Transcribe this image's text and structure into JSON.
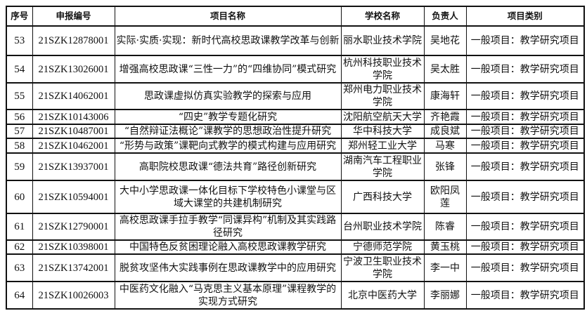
{
  "table": {
    "headers": [
      "序号",
      "申报编号",
      "项目名称",
      "学校名称",
      "负责人",
      "项目类别"
    ],
    "rows": [
      {
        "no": "53",
        "code": "21SZK12878001",
        "project": "实际·实质·实现：新时代高校思政课教学改革与创新",
        "school": "丽水职业技术学院",
        "leader": "吴地花",
        "category": "一般项目：教学研究项目"
      },
      {
        "no": "54",
        "code": "21SZK13026001",
        "project": "增强高校思政课“三性一力”的“四维协同”模式研究",
        "school": "杭州科技职业技术学院",
        "leader": "吴太胜",
        "category": "一般项目：教学研究项目"
      },
      {
        "no": "55",
        "code": "21SZK14062001",
        "project": "思政课虚拟仿真实验教学的探索与应用",
        "school": "郑州电力职业技术学院",
        "leader": "康海轩",
        "category": "一般项目：教学研究项目"
      },
      {
        "no": "56",
        "code": "21SZK10143006",
        "project": "“四史”教学专题化研究",
        "school": "沈阳航空航天大学",
        "leader": "齐艳霞",
        "category": "一般项目：教学研究项目"
      },
      {
        "no": "57",
        "code": "21SZK10487001",
        "project": "“自然辩证法概论”课教学的思想政治性提升研究",
        "school": "华中科技大学",
        "leader": "成良斌",
        "category": "一般项目：教学研究项目"
      },
      {
        "no": "58",
        "code": "21SZK10462001",
        "project": "“形势与政策”课靶向式教学的模式构建与应用研究",
        "school": "郑州轻工业大学",
        "leader": "马寒",
        "category": "一般项目：教学研究项目"
      },
      {
        "no": "59",
        "code": "21SZK13937001",
        "project": "高职院校思政课“德法共育”路径创新研究",
        "school": "湖南汽车工程职业学院",
        "leader": "张锋",
        "category": "一般项目：教学研究项目"
      },
      {
        "no": "60",
        "code": "21SZK10594001",
        "project": "大中小学思政课一体化目标下学校特色小课堂与区域大课堂的共建机制研究",
        "school": "广西科技大学",
        "leader": "欧阳凤莲",
        "category": "一般项目：教学研究项目"
      },
      {
        "no": "61",
        "code": "21SZK12790001",
        "project": "高校思政课手拉手教学“同课异构”机制及其实践路径研究",
        "school": "台州职业技术学院",
        "leader": "陈睿",
        "category": "一般项目：教学研究项目"
      },
      {
        "no": "62",
        "code": "21SZK10398001",
        "project": "中国特色反贫困理论融入高校思政课教学研究",
        "school": "宁德师范学院",
        "leader": "黄玉桃",
        "category": "一般项目：教学研究项目"
      },
      {
        "no": "63",
        "code": "21SZK13742001",
        "project": "脱贫攻坚伟大实践事例在思政课教学中的应用研究",
        "school": "宁波卫生职业技术学院",
        "leader": "李一中",
        "category": "一般项目：教学研究项目"
      },
      {
        "no": "64",
        "code": "21SZK10026003",
        "project": "中医药文化融入“马克思主义基本原理”课程教学的实现方式研究",
        "school": "北京中医药大学",
        "leader": "李丽娜",
        "category": "一般项目：教学研究项目"
      }
    ]
  }
}
